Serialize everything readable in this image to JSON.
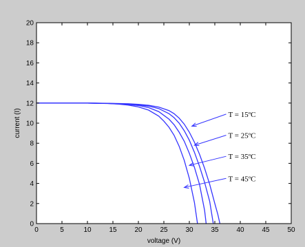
{
  "chart_data": {
    "type": "line",
    "title": "",
    "xlabel": "voltage (V)",
    "ylabel": "current (I)",
    "xlim": [
      0,
      50
    ],
    "ylim": [
      0,
      20
    ],
    "xticks": [
      0,
      5,
      10,
      15,
      20,
      25,
      30,
      35,
      40,
      45,
      50
    ],
    "yticks": [
      0,
      2,
      4,
      6,
      8,
      10,
      12,
      14,
      16,
      18,
      20
    ],
    "grid": false,
    "line_color": "#3333ff",
    "series": [
      {
        "voc": 36.0,
        "x": [
          0,
          10,
          14,
          18,
          20,
          22,
          24,
          26,
          27,
          28,
          29,
          30,
          31,
          32,
          33,
          34,
          35,
          35.6,
          36.0
        ],
        "y": [
          12.0,
          12.0,
          11.98,
          11.93,
          11.87,
          11.78,
          11.6,
          11.25,
          10.95,
          10.5,
          9.9,
          9.1,
          8.1,
          6.9,
          5.5,
          3.9,
          2.0,
          0.9,
          0.0
        ]
      },
      {
        "voc": 34.7,
        "x": [
          0,
          10,
          14,
          18,
          20,
          22,
          24,
          26,
          27,
          28,
          29,
          30,
          31,
          32,
          33,
          34,
          34.7
        ],
        "y": [
          12.0,
          12.0,
          11.97,
          11.9,
          11.82,
          11.7,
          11.45,
          10.95,
          10.55,
          10.0,
          9.25,
          8.3,
          7.1,
          5.7,
          4.1,
          2.2,
          0.0
        ]
      },
      {
        "voc": 33.3,
        "x": [
          0,
          10,
          14,
          18,
          20,
          22,
          24,
          26,
          27,
          28,
          29,
          30,
          31,
          32,
          33,
          33.3
        ],
        "y": [
          12.0,
          12.0,
          11.96,
          11.86,
          11.76,
          11.55,
          11.15,
          10.4,
          9.85,
          9.1,
          8.2,
          7.0,
          5.6,
          3.9,
          1.3,
          0.0
        ]
      },
      {
        "voc": 31.6,
        "x": [
          0,
          10,
          14,
          16,
          18,
          20,
          22,
          24,
          25,
          26,
          27,
          28,
          29,
          30,
          31,
          31.6
        ],
        "y": [
          12.0,
          12.0,
          11.95,
          11.9,
          11.8,
          11.62,
          11.3,
          10.7,
          10.2,
          9.6,
          8.8,
          7.7,
          6.3,
          4.5,
          2.1,
          0.0
        ]
      }
    ],
    "annotations": [
      {
        "text": "T = 15ºC",
        "label_at": [
          37.5,
          10.9
        ],
        "arrow_to": [
          30.5,
          9.7
        ]
      },
      {
        "text": "T = 25ºC",
        "label_at": [
          37.5,
          8.8
        ],
        "arrow_to": [
          31.0,
          7.8
        ]
      },
      {
        "text": "T = 35ºC",
        "label_at": [
          37.5,
          6.7
        ],
        "arrow_to": [
          30.0,
          5.8
        ]
      },
      {
        "text": "T = 45ºC",
        "label_at": [
          37.5,
          4.5
        ],
        "arrow_to": [
          29.0,
          3.6
        ]
      }
    ]
  }
}
